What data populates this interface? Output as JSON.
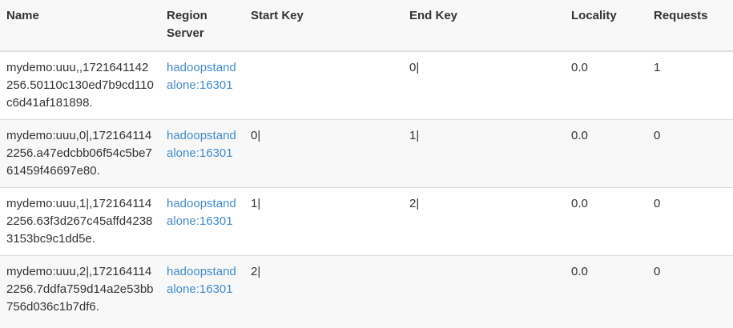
{
  "table": {
    "columns": [
      "Name",
      "Region Server",
      "Start Key",
      "End Key",
      "Locality",
      "Requests"
    ],
    "rows": [
      {
        "name": "mydemo:uuu,,1721641142256.50110c130ed7b9cd110c6d41af181898.",
        "region_server": "hadoopstandalone:16301",
        "start_key": "",
        "end_key": "0|",
        "locality": "0.0",
        "requests": "1"
      },
      {
        "name": "mydemo:uuu,0|,1721641142256.a47edcbb06f54c5be761459f46697e80.",
        "region_server": "hadoopstandalone:16301",
        "start_key": "0|",
        "end_key": "1|",
        "locality": "0.0",
        "requests": "0"
      },
      {
        "name": "mydemo:uuu,1|,1721641142256.63f3d267c45affd42383153bc9c1dd5e.",
        "region_server": "hadoopstandalone:16301",
        "start_key": "1|",
        "end_key": "2|",
        "locality": "0.0",
        "requests": "0"
      },
      {
        "name": "mydemo:uuu,2|,1721641142256.7ddfa759d14a2e53bb756d036c1b7df6.",
        "region_server": "hadoopstandalone:16301",
        "start_key": "2|",
        "end_key": "",
        "locality": "0.0",
        "requests": "0"
      }
    ]
  },
  "colors": {
    "link": "#428bca",
    "stripe": "#f8f8f8",
    "border": "#dddddd",
    "text": "#333333"
  }
}
